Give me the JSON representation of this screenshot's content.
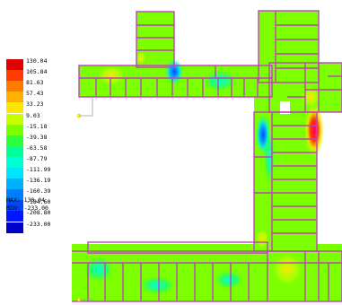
{
  "legend": {
    "entries": [
      {
        "label": "130.04",
        "color": "#e00000"
      },
      {
        "label": "105.84",
        "color": "#ff3a00"
      },
      {
        "label": "81.63",
        "color": "#ff7a00"
      },
      {
        "label": "57.43",
        "color": "#ffb000"
      },
      {
        "label": "33.23",
        "color": "#ffe400"
      },
      {
        "label": "9.03",
        "color": "#c8ff00"
      },
      {
        "label": "-15.18",
        "color": "#7cff00"
      },
      {
        "label": "-39.38",
        "color": "#2cff3c"
      },
      {
        "label": "-63.58",
        "color": "#00ff9a"
      },
      {
        "label": "-87.79",
        "color": "#00ffd8"
      },
      {
        "label": "-111.99",
        "color": "#00e4ff"
      },
      {
        "label": "-136.19",
        "color": "#00b0ff"
      },
      {
        "label": "-160.39",
        "color": "#007cff"
      },
      {
        "label": "-184.60",
        "color": "#0048ff"
      },
      {
        "label": "-208.80",
        "color": "#0014ff"
      },
      {
        "label": "-233.00",
        "color": "#0000c8"
      }
    ]
  },
  "stats": {
    "max": "MAX: 130.04",
    "min": "MIN: -233.00"
  },
  "colors": {
    "field_base": "#7cff00",
    "mesh_edge": "#c040c0",
    "support_node": "#ffff00"
  }
}
